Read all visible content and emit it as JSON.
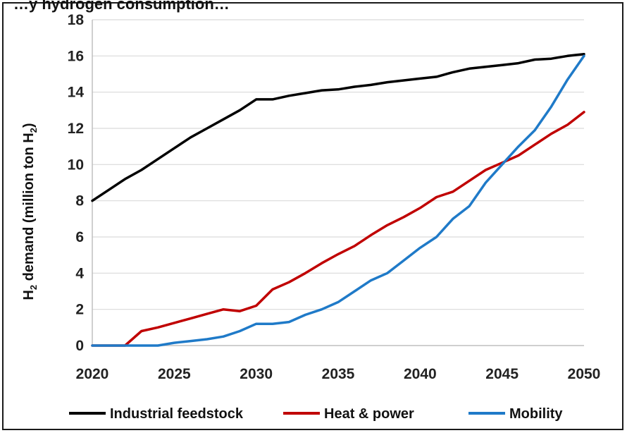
{
  "chart_data": {
    "type": "line",
    "title": "…y hydrogen consumption…",
    "ylabel_main": "H",
    "ylabel_sub": "2",
    "ylabel_mid": " demand (million ton H",
    "ylabel_sub2": "2",
    "ylabel_end": ")",
    "xlabel": "",
    "xlim": [
      2020,
      2050
    ],
    "ylim": [
      0,
      18
    ],
    "x_ticks": [
      2020,
      2025,
      2030,
      2035,
      2040,
      2045,
      2050
    ],
    "y_ticks": [
      0,
      2,
      4,
      6,
      8,
      10,
      12,
      14,
      16,
      18
    ],
    "grid": "horizontal",
    "legend": "bottom",
    "x": [
      2020,
      2021,
      2022,
      2023,
      2024,
      2025,
      2026,
      2027,
      2028,
      2029,
      2030,
      2031,
      2032,
      2033,
      2034,
      2035,
      2036,
      2037,
      2038,
      2039,
      2040,
      2041,
      2042,
      2043,
      2044,
      2045,
      2046,
      2047,
      2048,
      2049,
      2050
    ],
    "series": [
      {
        "name": "Industrial feedstock",
        "color": "#000000",
        "values": [
          8.0,
          8.6,
          9.2,
          9.7,
          10.3,
          10.9,
          11.5,
          12.0,
          12.5,
          13.0,
          13.6,
          13.6,
          13.8,
          13.95,
          14.1,
          14.15,
          14.3,
          14.4,
          14.55,
          14.65,
          14.75,
          14.85,
          15.1,
          15.3,
          15.4,
          15.5,
          15.6,
          15.8,
          15.85,
          16.0,
          16.1
        ]
      },
      {
        "name": "Heat & power",
        "color": "#c00000",
        "values": [
          0.0,
          0.0,
          0.0,
          0.8,
          1.0,
          1.25,
          1.5,
          1.75,
          2.0,
          1.9,
          2.2,
          3.1,
          3.5,
          4.0,
          4.55,
          5.05,
          5.5,
          6.1,
          6.65,
          7.1,
          7.6,
          8.2,
          8.5,
          9.1,
          9.7,
          10.1,
          10.5,
          11.1,
          11.7,
          12.2,
          12.9
        ]
      },
      {
        "name": "Mobility",
        "color": "#1f7ac8",
        "values": [
          0.0,
          0.0,
          0.0,
          0.0,
          0.0,
          0.15,
          0.25,
          0.35,
          0.5,
          0.8,
          1.2,
          1.2,
          1.3,
          1.7,
          2.0,
          2.4,
          3.0,
          3.6,
          4.0,
          4.7,
          5.4,
          6.0,
          7.0,
          7.7,
          9.0,
          10.0,
          11.0,
          11.9,
          13.2,
          14.7,
          16.0
        ]
      }
    ]
  }
}
